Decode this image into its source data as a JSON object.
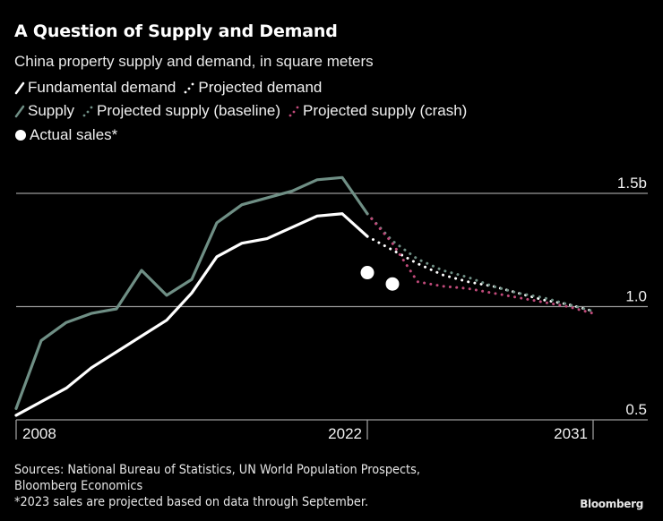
{
  "title": "A Question of Supply and Demand",
  "subtitle": "China property supply and demand, in square meters",
  "legend": [
    {
      "label": "Fundamental demand",
      "icon": "solid-line-icon",
      "color": "#ffffff"
    },
    {
      "label": "Projected demand",
      "icon": "dotted-line-icon",
      "color": "#ffffff"
    },
    {
      "label": "Supply",
      "icon": "solid-line-icon",
      "color": "#6f8f85"
    },
    {
      "label": "Projected supply (baseline)",
      "icon": "dotted-line-icon",
      "color": "#6f8f85"
    },
    {
      "label": "Projected supply (crash)",
      "icon": "dotted-line-icon",
      "color": "#c04a7a"
    },
    {
      "label": "Actual sales*",
      "icon": "dot-icon",
      "color": "#ffffff"
    }
  ],
  "footer": {
    "sources_line1": "Sources: National Bureau of Statistics, UN World Population Prospects,",
    "sources_line2": "Bloomberg Economics",
    "note": "*2023 sales are projected based on data through September."
  },
  "brand": "Bloomberg",
  "colors": {
    "background": "#000000",
    "demand": "#ffffff",
    "supply": "#6f8f85",
    "crash": "#c04a7a",
    "grid": "#9a9a9a"
  },
  "chart_data": {
    "type": "line",
    "title": "A Question of Supply and Demand",
    "subtitle": "China property supply and demand, in square meters",
    "xlabel": "",
    "ylabel": "square meters (billions)",
    "xlim": [
      2008,
      2032
    ],
    "ylim": [
      0.5,
      1.5
    ],
    "y_ticks": [
      {
        "value": 1.5,
        "label": "1.5b"
      },
      {
        "value": 1.0,
        "label": "1.0"
      },
      {
        "value": 0.5,
        "label": "0.5"
      }
    ],
    "x_ticks": [
      {
        "value": 2008,
        "label": "2008"
      },
      {
        "value": 2022,
        "label": "2022"
      },
      {
        "value": 2031,
        "label": "2031"
      }
    ],
    "grid": true,
    "legend_position": "top-left",
    "series": [
      {
        "name": "Fundamental demand",
        "style": "solid",
        "color": "#ffffff",
        "x": [
          2008,
          2009,
          2010,
          2011,
          2012,
          2013,
          2014,
          2015,
          2016,
          2017,
          2018,
          2019,
          2020,
          2021,
          2022
        ],
        "values": [
          0.52,
          0.58,
          0.64,
          0.73,
          0.8,
          0.87,
          0.94,
          1.06,
          1.22,
          1.28,
          1.3,
          1.35,
          1.4,
          1.41,
          1.31
        ]
      },
      {
        "name": "Supply",
        "style": "solid",
        "color": "#6f8f85",
        "x": [
          2008,
          2009,
          2010,
          2011,
          2012,
          2013,
          2014,
          2015,
          2016,
          2017,
          2018,
          2019,
          2020,
          2021,
          2022
        ],
        "values": [
          0.55,
          0.85,
          0.93,
          0.97,
          0.99,
          1.16,
          1.05,
          1.12,
          1.37,
          1.45,
          1.48,
          1.51,
          1.56,
          1.57,
          1.41
        ]
      },
      {
        "name": "Projected demand",
        "style": "dotted",
        "color": "#ffffff",
        "x": [
          2022,
          2023,
          2024,
          2025,
          2026,
          2027,
          2028,
          2029,
          2030,
          2031
        ],
        "values": [
          1.31,
          1.25,
          1.19,
          1.14,
          1.11,
          1.09,
          1.06,
          1.03,
          1.01,
          0.98
        ]
      },
      {
        "name": "Projected supply (baseline)",
        "style": "dotted",
        "color": "#6f8f85",
        "x": [
          2022,
          2023,
          2024,
          2025,
          2026,
          2027,
          2028,
          2029,
          2030,
          2031
        ],
        "values": [
          1.41,
          1.29,
          1.21,
          1.16,
          1.13,
          1.09,
          1.06,
          1.04,
          1.01,
          0.98
        ]
      },
      {
        "name": "Projected supply (crash)",
        "style": "dotted",
        "color": "#c04a7a",
        "x": [
          2022,
          2023,
          2024,
          2025,
          2026,
          2027,
          2028,
          2029,
          2030,
          2031
        ],
        "values": [
          1.41,
          1.28,
          1.11,
          1.09,
          1.08,
          1.06,
          1.04,
          1.02,
          1.0,
          0.97
        ]
      },
      {
        "name": "Actual sales*",
        "style": "points",
        "color": "#ffffff",
        "x": [
          2022,
          2023
        ],
        "values": [
          1.15,
          1.1
        ]
      }
    ]
  }
}
